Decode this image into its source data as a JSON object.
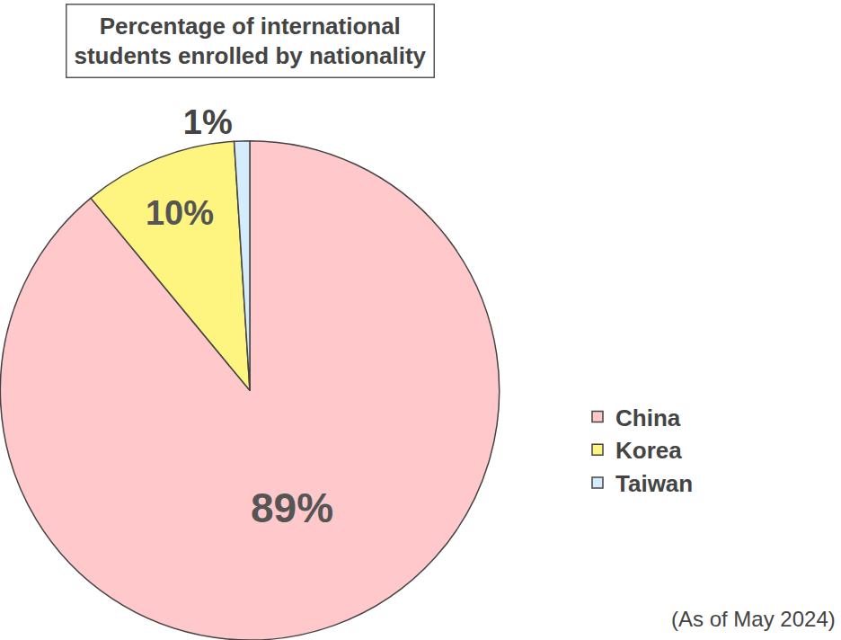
{
  "chart_data": {
    "type": "pie",
    "title": "Percentage of international students enrolled by nationality",
    "annotations": [
      "(As of May 2024)"
    ],
    "categories": [
      "China",
      "Korea",
      "Taiwan"
    ],
    "values": [
      89,
      10,
      1
    ],
    "value_labels": [
      "89%",
      "10%",
      "1%"
    ],
    "colors": [
      "#ffc9cb",
      "#fdf57f",
      "#d4ecfb"
    ],
    "data_labels": true,
    "legend": "right"
  }
}
